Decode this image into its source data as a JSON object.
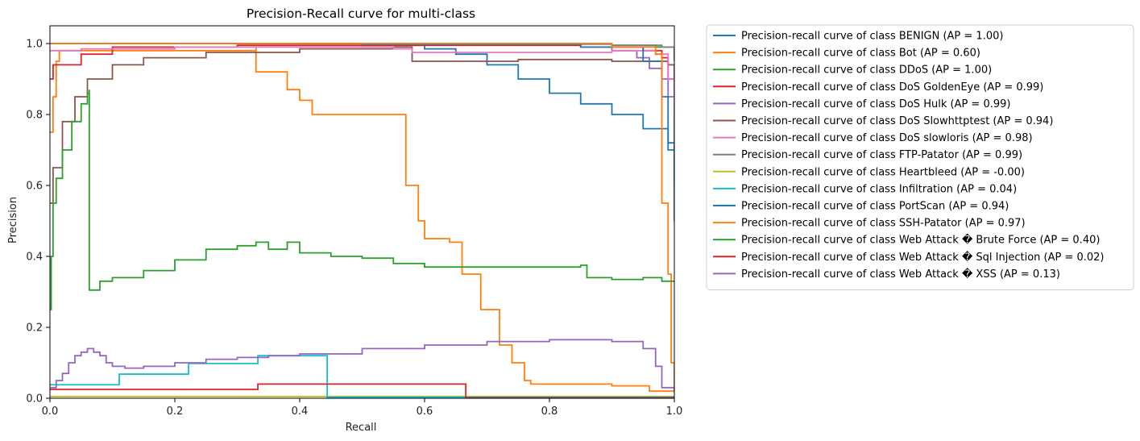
{
  "chart_data": {
    "type": "line",
    "title": "Precision-Recall curve for multi-class",
    "xlabel": "Recall",
    "ylabel": "Precision",
    "xlim": [
      0,
      1.0
    ],
    "ylim": [
      0,
      1.05
    ],
    "xticks": [
      "0.0",
      "0.2",
      "0.4",
      "0.6",
      "0.8",
      "1.0"
    ],
    "yticks": [
      "0.0",
      "0.2",
      "0.4",
      "0.6",
      "0.8",
      "1.0"
    ],
    "grid": false,
    "legend_position": "outside-right",
    "series": [
      {
        "name": "Precision-recall curve of class BENIGN (AP = 1.00)",
        "color": "#1f77b4",
        "points": [
          [
            0,
            1.0
          ],
          [
            0.3,
            1.0
          ],
          [
            0.5,
            0.995
          ],
          [
            0.6,
            0.985
          ],
          [
            0.65,
            0.97
          ],
          [
            0.7,
            0.94
          ],
          [
            0.75,
            0.9
          ],
          [
            0.8,
            0.86
          ],
          [
            0.85,
            0.83
          ],
          [
            0.9,
            0.8
          ],
          [
            0.95,
            0.76
          ],
          [
            0.99,
            0.72
          ],
          [
            1.0,
            0.6
          ]
        ]
      },
      {
        "name": "Precision-recall curve of class Bot (AP = 0.60)",
        "color": "#ff7f0e",
        "points": [
          [
            0,
            0.75
          ],
          [
            0.005,
            0.85
          ],
          [
            0.01,
            0.95
          ],
          [
            0.015,
            0.98
          ],
          [
            0.33,
            0.99
          ],
          [
            0.33,
            0.92
          ],
          [
            0.38,
            0.87
          ],
          [
            0.4,
            0.84
          ],
          [
            0.42,
            0.8
          ],
          [
            0.5,
            0.8
          ],
          [
            0.57,
            0.8
          ],
          [
            0.57,
            0.76
          ],
          [
            0.57,
            0.6
          ],
          [
            0.59,
            0.5
          ],
          [
            0.6,
            0.45
          ],
          [
            0.64,
            0.44
          ],
          [
            0.66,
            0.35
          ],
          [
            0.69,
            0.25
          ],
          [
            0.72,
            0.15
          ],
          [
            0.74,
            0.1
          ],
          [
            0.76,
            0.05
          ],
          [
            0.77,
            0.04
          ],
          [
            0.9,
            0.035
          ],
          [
            0.96,
            0.02
          ],
          [
            1.0,
            0.015
          ]
        ]
      },
      {
        "name": "Precision-recall curve of class DDoS (AP = 1.00)",
        "color": "#2ca02c",
        "points": [
          [
            0,
            1.0
          ],
          [
            0.5,
            1.0
          ],
          [
            0.9,
            0.995
          ],
          [
            0.97,
            0.99
          ],
          [
            1.0,
            0.96
          ]
        ]
      },
      {
        "name": "Precision-recall curve of class DoS GoldenEye (AP = 0.99)",
        "color": "#d62728",
        "points": [
          [
            0,
            0.9
          ],
          [
            0.005,
            0.94
          ],
          [
            0.05,
            0.97
          ],
          [
            0.1,
            0.99
          ],
          [
            0.3,
            0.995
          ],
          [
            0.85,
            0.99
          ],
          [
            0.95,
            0.98
          ],
          [
            0.98,
            0.96
          ],
          [
            0.99,
            0.9
          ],
          [
            1.0,
            0.85
          ]
        ]
      },
      {
        "name": "Precision-recall curve of class DoS Hulk (AP = 0.99)",
        "color": "#9467bd",
        "points": [
          [
            0,
            1.0
          ],
          [
            0.6,
            1.0
          ],
          [
            0.9,
            0.98
          ],
          [
            0.94,
            0.96
          ],
          [
            0.96,
            0.93
          ],
          [
            0.98,
            0.9
          ],
          [
            0.99,
            0.85
          ],
          [
            1.0,
            0.7
          ]
        ]
      },
      {
        "name": "Precision-recall curve of class DoS Slowhttptest (AP = 0.94)",
        "color": "#8c564b",
        "points": [
          [
            0,
            0.55
          ],
          [
            0.005,
            0.65
          ],
          [
            0.02,
            0.78
          ],
          [
            0.04,
            0.85
          ],
          [
            0.06,
            0.9
          ],
          [
            0.1,
            0.94
          ],
          [
            0.15,
            0.96
          ],
          [
            0.25,
            0.975
          ],
          [
            0.4,
            0.985
          ],
          [
            0.55,
            0.99
          ],
          [
            0.58,
            0.95
          ],
          [
            0.75,
            0.955
          ],
          [
            0.9,
            0.95
          ],
          [
            0.99,
            0.94
          ],
          [
            1.0,
            0.9
          ]
        ]
      },
      {
        "name": "Precision-recall curve of class DoS slowloris (AP = 0.98)",
        "color": "#e377c2",
        "points": [
          [
            0,
            0.98
          ],
          [
            0.05,
            0.985
          ],
          [
            0.2,
            0.99
          ],
          [
            0.45,
            0.99
          ],
          [
            0.55,
            0.985
          ],
          [
            0.58,
            0.975
          ],
          [
            0.7,
            0.975
          ],
          [
            0.9,
            0.98
          ],
          [
            0.97,
            0.97
          ],
          [
            0.99,
            0.9
          ],
          [
            1.0,
            0.8
          ]
        ]
      },
      {
        "name": "Precision-recall curve of class FTP-Patator (AP = 0.99)",
        "color": "#7f7f7f",
        "points": [
          [
            0,
            1.0
          ],
          [
            0.5,
            0.998
          ],
          [
            0.9,
            0.995
          ],
          [
            0.98,
            0.99
          ],
          [
            1.0,
            0.95
          ]
        ]
      },
      {
        "name": "Precision-recall curve of class Heartbleed (AP = -0.00)",
        "color": "#bcbd22",
        "points": [
          [
            0,
            0.005
          ],
          [
            1.0,
            0.005
          ]
        ]
      },
      {
        "name": "Precision-recall curve of class Infiltration (AP = 0.04)",
        "color": "#17becf",
        "points": [
          [
            0,
            0.038
          ],
          [
            0.111,
            0.038
          ],
          [
            0.111,
            0.068
          ],
          [
            0.222,
            0.068
          ],
          [
            0.222,
            0.098
          ],
          [
            0.333,
            0.098
          ],
          [
            0.333,
            0.12
          ],
          [
            0.444,
            0.12
          ],
          [
            0.444,
            0.003
          ],
          [
            0.7,
            0.003
          ],
          [
            1.0,
            0.003
          ]
        ]
      },
      {
        "name": "Precision-recall curve of class PortScan (AP = 0.94)",
        "color": "#1f77b4",
        "points": [
          [
            0,
            1.0
          ],
          [
            0.1,
            1.0
          ],
          [
            0.5,
            0.998
          ],
          [
            0.85,
            0.99
          ],
          [
            0.95,
            0.95
          ],
          [
            0.98,
            0.85
          ],
          [
            0.99,
            0.7
          ],
          [
            1.0,
            0.5
          ]
        ]
      },
      {
        "name": "Precision-recall curve of class SSH-Patator (AP = 0.97)",
        "color": "#ff7f0e",
        "points": [
          [
            0,
            1.0
          ],
          [
            0.5,
            1.0
          ],
          [
            0.9,
            0.99
          ],
          [
            0.97,
            0.97
          ],
          [
            0.98,
            0.8
          ],
          [
            0.98,
            0.55
          ],
          [
            0.99,
            0.35
          ],
          [
            0.995,
            0.1
          ],
          [
            1.0,
            0.02
          ]
        ]
      },
      {
        "name": "Precision-recall curve of class Web Attack � Brute Force (AP = 0.40)",
        "color": "#2ca02c",
        "points": [
          [
            0,
            0.25
          ],
          [
            0.002,
            0.4
          ],
          [
            0.005,
            0.55
          ],
          [
            0.01,
            0.62
          ],
          [
            0.02,
            0.7
          ],
          [
            0.035,
            0.78
          ],
          [
            0.05,
            0.83
          ],
          [
            0.06,
            0.86
          ],
          [
            0.063,
            0.87
          ],
          [
            0.063,
            0.305
          ],
          [
            0.08,
            0.33
          ],
          [
            0.1,
            0.34
          ],
          [
            0.15,
            0.36
          ],
          [
            0.2,
            0.39
          ],
          [
            0.25,
            0.42
          ],
          [
            0.3,
            0.43
          ],
          [
            0.33,
            0.44
          ],
          [
            0.35,
            0.42
          ],
          [
            0.38,
            0.44
          ],
          [
            0.4,
            0.41
          ],
          [
            0.45,
            0.4
          ],
          [
            0.5,
            0.395
          ],
          [
            0.55,
            0.38
          ],
          [
            0.6,
            0.37
          ],
          [
            0.7,
            0.37
          ],
          [
            0.85,
            0.375
          ],
          [
            0.86,
            0.34
          ],
          [
            0.9,
            0.335
          ],
          [
            0.95,
            0.34
          ],
          [
            0.98,
            0.33
          ],
          [
            1.0,
            0.33
          ]
        ]
      },
      {
        "name": "Precision-recall curve of class Web Attack � Sql Injection (AP = 0.02)",
        "color": "#d62728",
        "points": [
          [
            0,
            0.025
          ],
          [
            0.333,
            0.025
          ],
          [
            0.333,
            0.04
          ],
          [
            0.666,
            0.04
          ],
          [
            0.666,
            0.001
          ],
          [
            1.0,
            0.001
          ]
        ]
      },
      {
        "name": "Precision-recall curve of class Web Attack � XSS (AP = 0.13)",
        "color": "#9467bd",
        "points": [
          [
            0,
            0.03
          ],
          [
            0.01,
            0.05
          ],
          [
            0.02,
            0.07
          ],
          [
            0.03,
            0.1
          ],
          [
            0.04,
            0.12
          ],
          [
            0.05,
            0.13
          ],
          [
            0.06,
            0.14
          ],
          [
            0.07,
            0.13
          ],
          [
            0.08,
            0.12
          ],
          [
            0.09,
            0.1
          ],
          [
            0.1,
            0.09
          ],
          [
            0.12,
            0.085
          ],
          [
            0.15,
            0.09
          ],
          [
            0.2,
            0.1
          ],
          [
            0.25,
            0.11
          ],
          [
            0.3,
            0.115
          ],
          [
            0.35,
            0.12
          ],
          [
            0.4,
            0.125
          ],
          [
            0.5,
            0.14
          ],
          [
            0.6,
            0.15
          ],
          [
            0.7,
            0.16
          ],
          [
            0.8,
            0.165
          ],
          [
            0.9,
            0.16
          ],
          [
            0.95,
            0.14
          ],
          [
            0.97,
            0.09
          ],
          [
            0.98,
            0.03
          ],
          [
            1.0,
            0.02
          ]
        ]
      }
    ]
  }
}
